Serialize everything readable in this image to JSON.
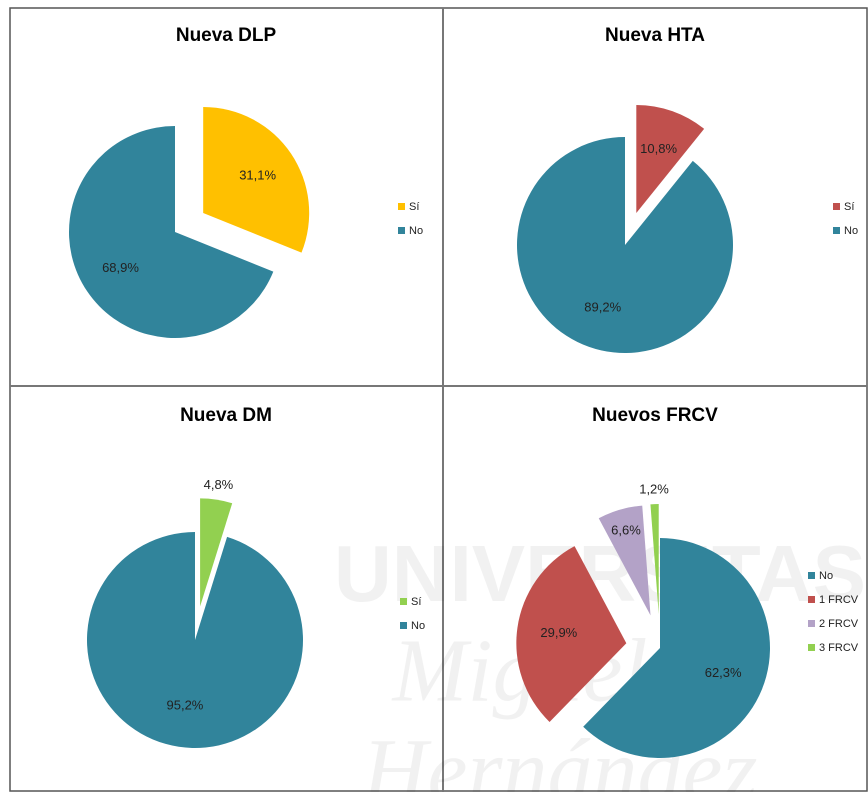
{
  "watermark": [
    "UNIVERSITAS",
    "Miguel",
    "Hernández"
  ],
  "chart_data": [
    {
      "type": "pie",
      "title": "Nueva DLP",
      "categories": [
        "Sí",
        "No"
      ],
      "values": [
        31.1,
        68.9
      ],
      "value_labels": [
        "31,1%",
        "68,9%"
      ],
      "colors": [
        "#ffc000",
        "#31849b"
      ]
    },
    {
      "type": "pie",
      "title": "Nueva HTA",
      "categories": [
        "Sí",
        "No"
      ],
      "values": [
        10.8,
        89.2
      ],
      "value_labels": [
        "10,8%",
        "89,2%"
      ],
      "colors": [
        "#c0504d",
        "#31849b"
      ]
    },
    {
      "type": "pie",
      "title": "Nueva DM",
      "categories": [
        "Sí",
        "No"
      ],
      "values": [
        4.8,
        95.2
      ],
      "value_labels": [
        "4,8%",
        "95,2%"
      ],
      "colors": [
        "#92d050",
        "#31849b"
      ]
    },
    {
      "type": "pie",
      "title": "Nuevos FRCV",
      "categories": [
        "No",
        "1 FRCV",
        "2 FRCV",
        "3 FRCV"
      ],
      "values": [
        62.3,
        29.9,
        6.6,
        1.2
      ],
      "value_labels": [
        "62,3%",
        "29,9%",
        "6,6%",
        "1,2%"
      ],
      "colors": [
        "#31849b",
        "#c0504d",
        "#b3a2c7",
        "#92d050"
      ]
    }
  ]
}
